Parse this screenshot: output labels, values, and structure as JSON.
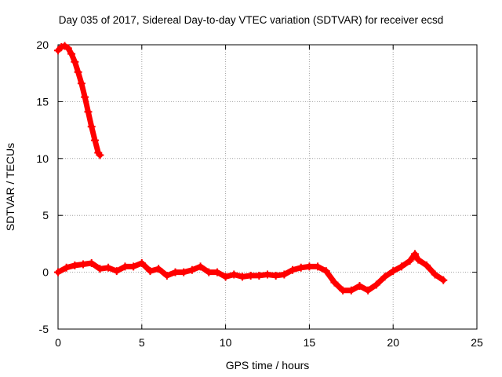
{
  "chart_data": {
    "type": "scatter",
    "title": "Day 035 of 2017, Sidereal Day-to-day VTEC variation (SDTVAR) for receiver ecsd",
    "xlabel": "GPS time / hours",
    "ylabel": "SDTVAR / TECUs",
    "xlim": [
      0,
      25
    ],
    "ylim": [
      -5,
      20
    ],
    "xticks": [
      0,
      5,
      10,
      15,
      20,
      25
    ],
    "yticks": [
      -5,
      0,
      5,
      10,
      15,
      20
    ],
    "grid": true,
    "marker": "plus",
    "color": "#ff0000",
    "series": [
      {
        "name": "segment-1",
        "x": [
          0.0,
          0.2,
          0.4,
          0.6,
          0.8,
          1.0,
          1.2,
          1.4,
          1.6,
          1.8,
          2.0,
          2.2,
          2.4,
          2.5
        ],
        "y": [
          19.5,
          19.8,
          19.9,
          19.7,
          19.2,
          18.5,
          17.6,
          16.6,
          15.4,
          14.1,
          12.8,
          11.6,
          10.5,
          10.3
        ]
      },
      {
        "name": "segment-2",
        "x": [
          0.0,
          0.5,
          1.0,
          1.5,
          2.0,
          2.5,
          3.0,
          3.5,
          4.0,
          4.5,
          5.0,
          5.5,
          6.0,
          6.5,
          7.0,
          7.5,
          8.0,
          8.5,
          9.0,
          9.5,
          10.0,
          10.5,
          11.0,
          11.5,
          12.0,
          12.5,
          13.0,
          13.5,
          14.0,
          14.5,
          15.0,
          15.5,
          16.0,
          16.5,
          17.0,
          17.5,
          18.0,
          18.5,
          19.0,
          19.5,
          20.0,
          20.5,
          21.0,
          21.3,
          21.5,
          22.0,
          22.5,
          23.0
        ],
        "y": [
          0.0,
          0.4,
          0.6,
          0.7,
          0.8,
          0.3,
          0.4,
          0.1,
          0.5,
          0.5,
          0.8,
          0.1,
          0.3,
          -0.3,
          0.0,
          0.0,
          0.2,
          0.5,
          0.0,
          0.0,
          -0.4,
          -0.2,
          -0.4,
          -0.3,
          -0.3,
          -0.2,
          -0.3,
          -0.2,
          0.2,
          0.4,
          0.5,
          0.5,
          0.1,
          -0.9,
          -1.6,
          -1.6,
          -1.2,
          -1.6,
          -1.1,
          -0.4,
          0.1,
          0.5,
          1.0,
          1.6,
          1.1,
          0.6,
          -0.2,
          -0.7
        ]
      }
    ]
  }
}
